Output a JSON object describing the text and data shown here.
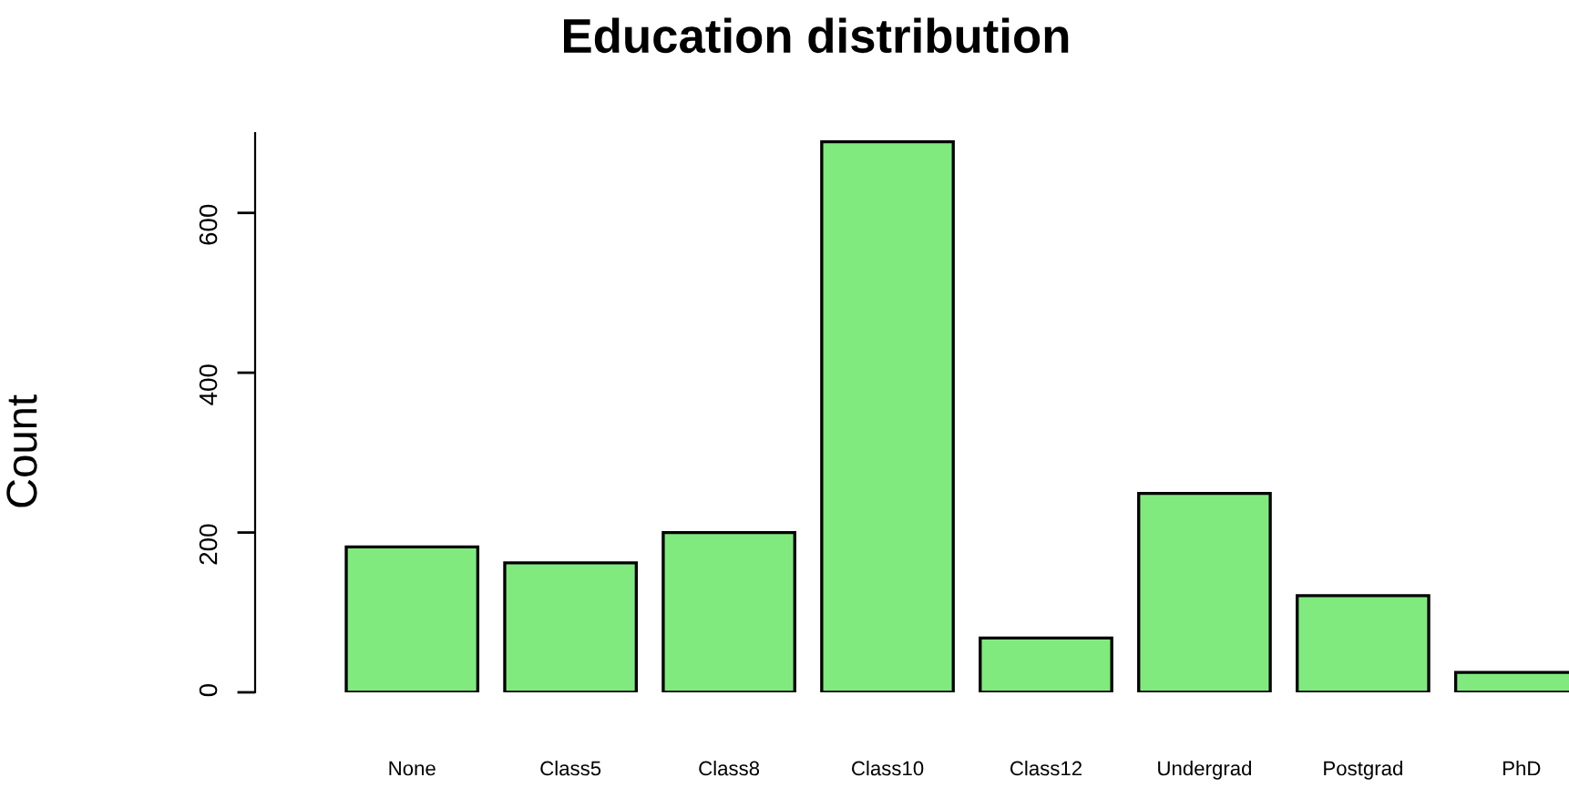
{
  "chart_data": {
    "type": "bar",
    "title": "Education distribution",
    "ylabel": "Count",
    "categories": [
      "None",
      "Class5",
      "Class8",
      "Class10",
      "Class12",
      "Undergrad",
      "Postgrad",
      "PhD"
    ],
    "values": [
      182,
      162,
      200,
      689,
      68,
      249,
      121,
      25
    ],
    "color": "#80ea7e",
    "ylim": [
      0,
      700
    ],
    "yticks": [
      0,
      200,
      400,
      600
    ],
    "grid": false,
    "legend": false
  }
}
